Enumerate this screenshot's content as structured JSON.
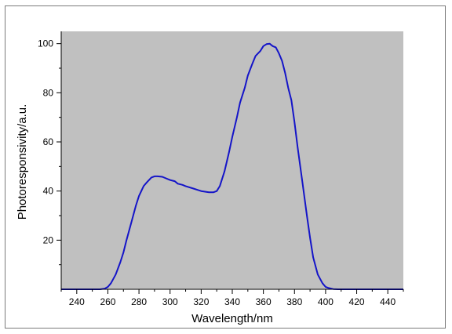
{
  "chart_data": {
    "type": "line",
    "title": "",
    "xlabel": "Wavelength/nm",
    "ylabel": "Photoresponsivity/a.u.",
    "xlim": [
      230,
      450
    ],
    "ylim": [
      0,
      105
    ],
    "xticks": [
      240,
      260,
      280,
      300,
      320,
      340,
      360,
      380,
      400,
      420,
      440
    ],
    "yticks": [
      20,
      40,
      60,
      80,
      100
    ],
    "grid": false,
    "legend": "none",
    "plot_background": "#c0c0c0",
    "line_color": "#1414c8",
    "series": [
      {
        "name": "",
        "x": [
          230,
          240,
          250,
          255,
          258,
          260,
          262,
          265,
          268,
          270,
          272,
          275,
          278,
          280,
          283,
          285,
          288,
          290,
          292,
          295,
          298,
          300,
          303,
          305,
          308,
          310,
          315,
          320,
          325,
          328,
          330,
          332,
          335,
          338,
          340,
          343,
          345,
          348,
          350,
          353,
          355,
          358,
          360,
          362,
          364,
          366,
          368,
          370,
          372,
          374,
          376,
          378,
          380,
          382,
          385,
          388,
          390,
          392,
          395,
          398,
          400,
          402,
          405,
          408,
          410,
          420,
          430,
          440,
          450
        ],
        "y": [
          0,
          0,
          0,
          0,
          0.3,
          1,
          2.5,
          6,
          11,
          15,
          20,
          27,
          34,
          38,
          42,
          43.5,
          45.5,
          46,
          46,
          45.8,
          45,
          44.5,
          44,
          43,
          42.5,
          42,
          41,
          40,
          39.5,
          39.5,
          40,
          42,
          48,
          56,
          62,
          70,
          76,
          82,
          87,
          92,
          95,
          97,
          99,
          99.8,
          100,
          99,
          98.5,
          96,
          93,
          88,
          82,
          77,
          68,
          58,
          44,
          30,
          21,
          13,
          6,
          2.5,
          1,
          0.5,
          0.1,
          0,
          0,
          0,
          0,
          0,
          0
        ]
      }
    ]
  }
}
